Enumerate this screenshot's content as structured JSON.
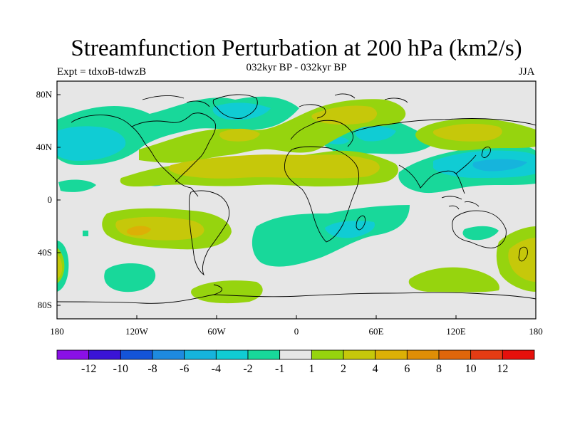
{
  "title": "Streamfunction Perturbation at 200 hPa (km2/s)",
  "subtitle": "032kyr BP - 032kyr BP",
  "left_string": "Expt = tdxoB-tdwzB",
  "right_string": "JJA",
  "axes": {
    "x_ticks": [
      "180",
      "120W",
      "60W",
      "0",
      "60E",
      "120E",
      "180"
    ],
    "y_ticks": [
      "80N",
      "40N",
      "0",
      "40S",
      "80S"
    ]
  },
  "colorbar": {
    "labels": [
      "-12",
      "-10",
      "-8",
      "-6",
      "-4",
      "-2",
      "-1",
      "1",
      "2",
      "4",
      "6",
      "8",
      "10",
      "12"
    ],
    "colors": [
      "#8a10e6",
      "#3a14d6",
      "#1454d8",
      "#1e8ae0",
      "#16b4dc",
      "#10ccd4",
      "#18d89a",
      "#e6e6e6",
      "#96d40e",
      "#c6c80a",
      "#dcb006",
      "#e08e06",
      "#e0660a",
      "#e43c14",
      "#e6100c"
    ]
  },
  "colors": {
    "background": "#e6e6e6",
    "ocean_neutral": "#e6e6e6",
    "coastline": "#000000"
  }
}
